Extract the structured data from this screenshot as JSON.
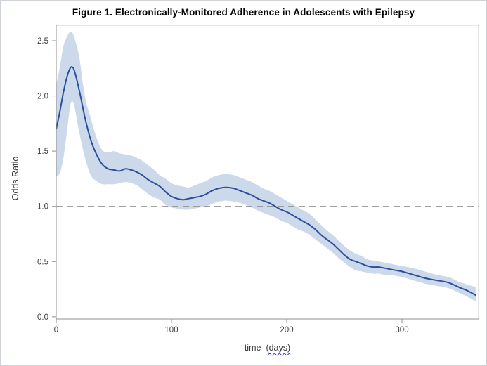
{
  "figure": {
    "title": "Figure 1. Electronically-Monitored Adherence in Adolescents with Epilepsy"
  },
  "chart_data": {
    "type": "line",
    "title": "Figure 1. Electronically-Monitored Adherence in Adolescents with Epilepsy",
    "xlabel": "time",
    "xlabel_unit": "(days)",
    "ylabel": "Odds Ratio",
    "xlim": [
      0,
      366.5
    ],
    "ylim": [
      -0.02,
      2.64
    ],
    "x_ticks": [
      0,
      100,
      200,
      300
    ],
    "y_ticks": [
      0.0,
      0.5,
      1.0,
      1.5,
      2.0,
      2.5
    ],
    "y_tick_labels": [
      "0.0",
      "0.5",
      "1.0",
      "1.5",
      "2.0",
      "2.5"
    ],
    "reference_line_y": 1.0,
    "grid": false,
    "legend": "none",
    "x": [
      0,
      3,
      6,
      9,
      12,
      14,
      16,
      20,
      25,
      30,
      35,
      40,
      45,
      50,
      55,
      60,
      65,
      70,
      75,
      80,
      85,
      90,
      95,
      100,
      105,
      110,
      115,
      120,
      125,
      130,
      135,
      140,
      145,
      150,
      155,
      160,
      165,
      170,
      175,
      180,
      185,
      190,
      195,
      200,
      205,
      210,
      215,
      220,
      225,
      230,
      235,
      240,
      245,
      250,
      255,
      260,
      265,
      270,
      275,
      280,
      285,
      290,
      295,
      300,
      310,
      320,
      330,
      340,
      350,
      357,
      364
    ],
    "series": [
      {
        "name": "odds_ratio",
        "values": [
          1.7,
          1.85,
          2.02,
          2.16,
          2.25,
          2.26,
          2.22,
          2.05,
          1.8,
          1.6,
          1.47,
          1.38,
          1.34,
          1.33,
          1.32,
          1.34,
          1.33,
          1.31,
          1.28,
          1.24,
          1.21,
          1.18,
          1.13,
          1.09,
          1.07,
          1.06,
          1.07,
          1.08,
          1.09,
          1.11,
          1.14,
          1.16,
          1.17,
          1.17,
          1.16,
          1.14,
          1.12,
          1.1,
          1.07,
          1.05,
          1.03,
          1.0,
          0.97,
          0.95,
          0.92,
          0.89,
          0.86,
          0.83,
          0.79,
          0.74,
          0.7,
          0.66,
          0.61,
          0.56,
          0.52,
          0.5,
          0.48,
          0.46,
          0.45,
          0.45,
          0.44,
          0.43,
          0.42,
          0.41,
          0.38,
          0.35,
          0.33,
          0.31,
          0.265,
          0.235,
          0.195
        ]
      },
      {
        "name": "ci_lower",
        "values": [
          1.27,
          1.3,
          1.42,
          1.65,
          1.9,
          1.95,
          1.9,
          1.67,
          1.44,
          1.28,
          1.23,
          1.2,
          1.2,
          1.2,
          1.21,
          1.22,
          1.21,
          1.19,
          1.15,
          1.11,
          1.08,
          1.06,
          1.01,
          0.99,
          0.98,
          0.97,
          0.97,
          0.98,
          0.99,
          1.0,
          1.02,
          1.04,
          1.05,
          1.05,
          1.04,
          1.03,
          1.01,
          0.99,
          0.96,
          0.94,
          0.92,
          0.9,
          0.87,
          0.85,
          0.82,
          0.79,
          0.77,
          0.74,
          0.7,
          0.66,
          0.62,
          0.58,
          0.53,
          0.49,
          0.45,
          0.42,
          0.41,
          0.4,
          0.39,
          0.39,
          0.38,
          0.38,
          0.37,
          0.36,
          0.33,
          0.3,
          0.28,
          0.26,
          0.215,
          0.18,
          0.14
        ]
      },
      {
        "name": "ci_upper",
        "values": [
          2.1,
          2.25,
          2.44,
          2.53,
          2.58,
          2.57,
          2.52,
          2.35,
          1.99,
          1.8,
          1.62,
          1.51,
          1.49,
          1.5,
          1.48,
          1.47,
          1.46,
          1.44,
          1.41,
          1.37,
          1.33,
          1.28,
          1.25,
          1.21,
          1.19,
          1.18,
          1.17,
          1.19,
          1.21,
          1.23,
          1.26,
          1.28,
          1.29,
          1.29,
          1.28,
          1.26,
          1.24,
          1.22,
          1.19,
          1.16,
          1.14,
          1.11,
          1.08,
          1.05,
          1.02,
          0.99,
          0.96,
          0.93,
          0.88,
          0.83,
          0.78,
          0.74,
          0.69,
          0.64,
          0.6,
          0.57,
          0.55,
          0.52,
          0.51,
          0.5,
          0.49,
          0.48,
          0.47,
          0.46,
          0.44,
          0.41,
          0.38,
          0.36,
          0.315,
          0.29,
          0.27
        ]
      }
    ],
    "colors": {
      "line": "#2b4f9b",
      "band": "#ccd9ea",
      "reference": "#929292",
      "frame": "#c9cccf",
      "axis": "#8f8f8f",
      "tick_label": "#3d3d3d"
    }
  }
}
